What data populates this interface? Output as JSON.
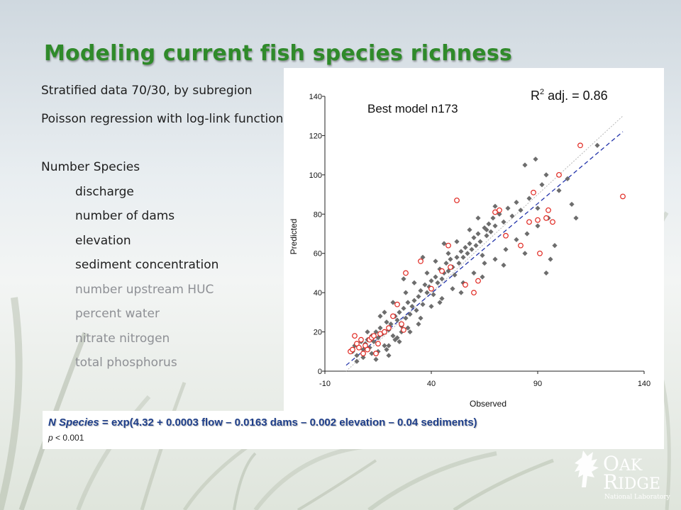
{
  "slide": {
    "title": "Modeling current fish species richness",
    "bullets": [
      "Stratified data 70/30, by subregion",
      "Poisson regression with log-link function",
      "Number Species",
      "discharge",
      "number of dams",
      "elevation",
      "sediment concentration",
      "number upstream HUC",
      "percent water",
      "nitrate nitrogen",
      "total phosphorus"
    ],
    "equation": {
      "lhs": "N Species",
      "rhs": " = exp(4.32 + 0.0003 flow – 0.0163 dams – 0.002 elevation – 0.04 sediments)",
      "p_italic": "p",
      "p_rest": " < 0.001"
    },
    "logo": {
      "line1": "AK",
      "line2": "IDGE",
      "line3": "National Laboratory",
      "icon": "oak-leaf-icon"
    },
    "colors": {
      "title": "#2f8a2a",
      "train": "#6d6d6d",
      "test": "#e0261f",
      "fit_line": "#2233aa"
    }
  },
  "chart_data": {
    "type": "scatter",
    "title": "Best model  n173",
    "annotation_main": "R",
    "annotation_sup": "2",
    "annotation_rest": " adj. = 0.86",
    "xlabel": "Observed",
    "ylabel": "Predicted",
    "xlim": [
      -10,
      140
    ],
    "ylim": [
      0,
      140
    ],
    "xticks": [
      -10,
      40,
      90,
      140
    ],
    "yticks": [
      0,
      20,
      40,
      60,
      80,
      100,
      120,
      140
    ],
    "grid": false,
    "one_to_one_line": [
      [
        0,
        0
      ],
      [
        130,
        130
      ]
    ],
    "fit_line": [
      [
        0,
        3
      ],
      [
        130,
        122
      ]
    ],
    "series": [
      {
        "marker": "filled-diamond",
        "points": [
          [
            3,
            10
          ],
          [
            4,
            13
          ],
          [
            5,
            8
          ],
          [
            6,
            12
          ],
          [
            7,
            15
          ],
          [
            8,
            11
          ],
          [
            9,
            14
          ],
          [
            10,
            16
          ],
          [
            11,
            12
          ],
          [
            12,
            18
          ],
          [
            13,
            15
          ],
          [
            14,
            20
          ],
          [
            15,
            17
          ],
          [
            16,
            22
          ],
          [
            17,
            19
          ],
          [
            18,
            13
          ],
          [
            19,
            25
          ],
          [
            20,
            21
          ],
          [
            21,
            24
          ],
          [
            22,
            18
          ],
          [
            23,
            28
          ],
          [
            24,
            26
          ],
          [
            25,
            30
          ],
          [
            26,
            23
          ],
          [
            27,
            32
          ],
          [
            28,
            27
          ],
          [
            29,
            35
          ],
          [
            30,
            29
          ],
          [
            31,
            33
          ],
          [
            32,
            36
          ],
          [
            33,
            31
          ],
          [
            34,
            38
          ],
          [
            35,
            41
          ],
          [
            36,
            34
          ],
          [
            37,
            44
          ],
          [
            38,
            40
          ],
          [
            39,
            43
          ],
          [
            40,
            46
          ],
          [
            41,
            39
          ],
          [
            42,
            48
          ],
          [
            43,
            45
          ],
          [
            44,
            52
          ],
          [
            45,
            47
          ],
          [
            46,
            50
          ],
          [
            47,
            55
          ],
          [
            48,
            51
          ],
          [
            49,
            57
          ],
          [
            50,
            53
          ],
          [
            51,
            49
          ],
          [
            52,
            58
          ],
          [
            53,
            55
          ],
          [
            54,
            61
          ],
          [
            55,
            58
          ],
          [
            56,
            63
          ],
          [
            57,
            60
          ],
          [
            58,
            65
          ],
          [
            59,
            62
          ],
          [
            60,
            68
          ],
          [
            61,
            64
          ],
          [
            62,
            70
          ],
          [
            63,
            66
          ],
          [
            64,
            59
          ],
          [
            65,
            73
          ],
          [
            66,
            69
          ],
          [
            67,
            75
          ],
          [
            68,
            71
          ],
          [
            69,
            78
          ],
          [
            70,
            74
          ],
          [
            72,
            80
          ],
          [
            74,
            76
          ],
          [
            76,
            83
          ],
          [
            78,
            79
          ],
          [
            80,
            86
          ],
          [
            82,
            82
          ],
          [
            84,
            105
          ],
          [
            86,
            88
          ],
          [
            88,
            91
          ],
          [
            89,
            108
          ],
          [
            90,
            83
          ],
          [
            92,
            95
          ],
          [
            94,
            100
          ],
          [
            96,
            57
          ],
          [
            98,
            64
          ],
          [
            100,
            92
          ],
          [
            104,
            98
          ],
          [
            106,
            85
          ],
          [
            108,
            78
          ],
          [
            118,
            115
          ],
          [
            20,
            8
          ],
          [
            25,
            15
          ],
          [
            30,
            20
          ],
          [
            35,
            27
          ],
          [
            40,
            33
          ],
          [
            45,
            37
          ],
          [
            50,
            42
          ],
          [
            55,
            45
          ],
          [
            60,
            50
          ],
          [
            65,
            55
          ],
          [
            70,
            57
          ],
          [
            75,
            62
          ],
          [
            80,
            67
          ],
          [
            85,
            70
          ],
          [
            90,
            74
          ],
          [
            95,
            78
          ],
          [
            18,
            30
          ],
          [
            22,
            35
          ],
          [
            28,
            40
          ],
          [
            32,
            45
          ],
          [
            38,
            50
          ],
          [
            42,
            56
          ],
          [
            48,
            60
          ],
          [
            52,
            66
          ],
          [
            58,
            72
          ],
          [
            62,
            78
          ],
          [
            5,
            5
          ],
          [
            8,
            7
          ],
          [
            12,
            9
          ],
          [
            15,
            10
          ],
          [
            20,
            13
          ],
          [
            24,
            17
          ],
          [
            16,
            28
          ],
          [
            26,
            20
          ],
          [
            34,
            24
          ],
          [
            44,
            35
          ],
          [
            54,
            40
          ],
          [
            64,
            48
          ],
          [
            74,
            54
          ],
          [
            84,
            60
          ],
          [
            94,
            50
          ],
          [
            70,
            84
          ],
          [
            66,
            72
          ],
          [
            56,
            44
          ],
          [
            46,
            65
          ],
          [
            36,
            58
          ],
          [
            27,
            47
          ],
          [
            10,
            20
          ],
          [
            14,
            6
          ],
          [
            19,
            11
          ],
          [
            23,
            16
          ],
          [
            29,
            22
          ]
        ]
      },
      {
        "marker": "hollow-circle",
        "points": [
          [
            2,
            10
          ],
          [
            3,
            11
          ],
          [
            4,
            18
          ],
          [
            5,
            14
          ],
          [
            6,
            12
          ],
          [
            7,
            16
          ],
          [
            8,
            9
          ],
          [
            9,
            13
          ],
          [
            10,
            11
          ],
          [
            11,
            16
          ],
          [
            12,
            17
          ],
          [
            13,
            18
          ],
          [
            14,
            9
          ],
          [
            15,
            14
          ],
          [
            16,
            19
          ],
          [
            18,
            20
          ],
          [
            20,
            22
          ],
          [
            22,
            28
          ],
          [
            24,
            34
          ],
          [
            26,
            24
          ],
          [
            27,
            21
          ],
          [
            28,
            50
          ],
          [
            35,
            56
          ],
          [
            40,
            42
          ],
          [
            45,
            51
          ],
          [
            48,
            64
          ],
          [
            49,
            53
          ],
          [
            52,
            87
          ],
          [
            56,
            44
          ],
          [
            60,
            40
          ],
          [
            62,
            46
          ],
          [
            70,
            81
          ],
          [
            72,
            82
          ],
          [
            75,
            69
          ],
          [
            82,
            64
          ],
          [
            86,
            76
          ],
          [
            88,
            91
          ],
          [
            90,
            77
          ],
          [
            91,
            60
          ],
          [
            94,
            78
          ],
          [
            95,
            82
          ],
          [
            100,
            100
          ],
          [
            110,
            115
          ],
          [
            130,
            89
          ],
          [
            97,
            76
          ]
        ]
      }
    ]
  }
}
